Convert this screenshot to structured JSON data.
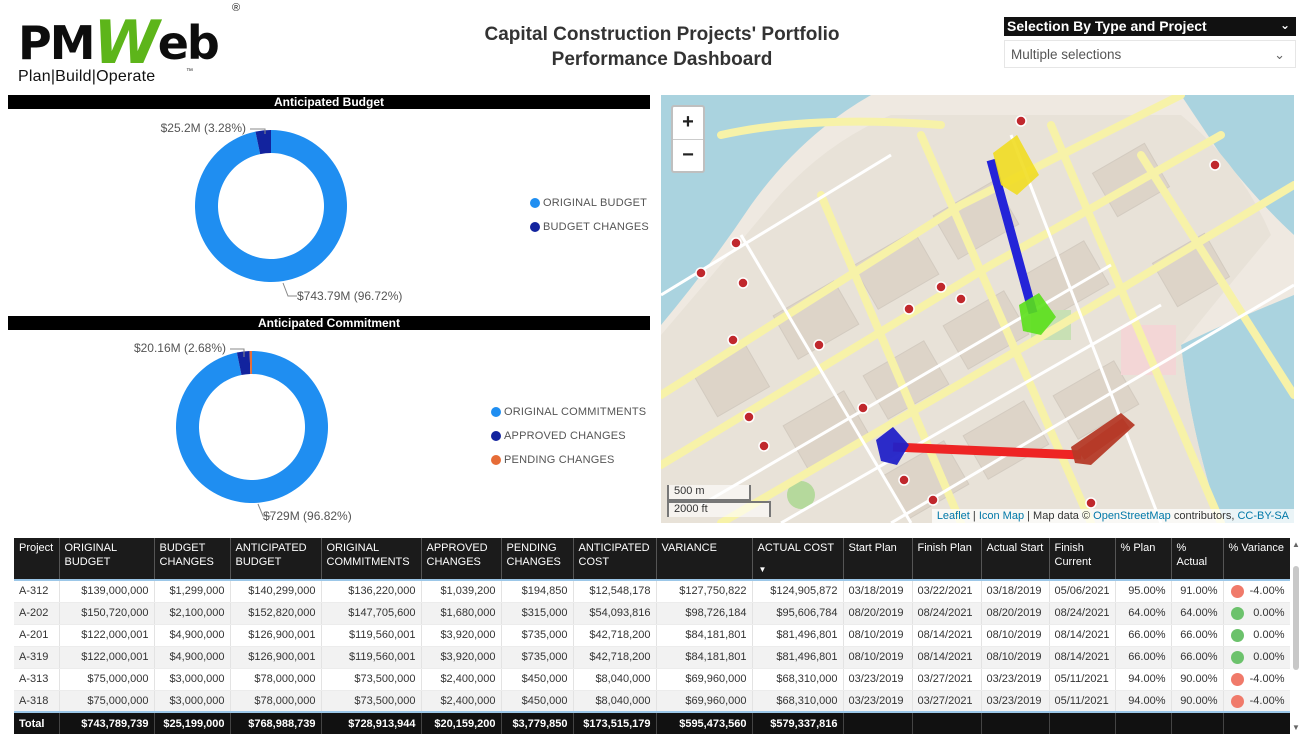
{
  "header": {
    "logo_text_left": "PM",
    "logo_text_w": "W",
    "logo_text_right": "eb",
    "logo_registered": "®",
    "logo_tagline": "Plan|Build|Operate",
    "logo_tm": "™",
    "title_line1": "Capital Construction Projects' Portfolio",
    "title_line2": "Performance Dashboard"
  },
  "slicer": {
    "title": "Selection By Type and Project",
    "value": "Multiple selections"
  },
  "budget_panel": {
    "title": "Anticipated Budget",
    "legend": [
      {
        "label": "ORIGINAL BUDGET",
        "color": "#1f8ef1"
      },
      {
        "label": "BUDGET CHANGES",
        "color": "#12239e"
      }
    ]
  },
  "commit_panel": {
    "title": "Anticipated Commitment",
    "legend": [
      {
        "label": "ORIGINAL COMMITMENTS",
        "color": "#1f8ef1"
      },
      {
        "label": "APPROVED CHANGES",
        "color": "#12239e"
      },
      {
        "label": "PENDING CHANGES",
        "color": "#e66c37"
      }
    ]
  },
  "chart_data": [
    {
      "type": "pie",
      "title": "Anticipated Budget",
      "categories": [
        "ORIGINAL BUDGET",
        "BUDGET CHANGES"
      ],
      "values": [
        743.79,
        25.2
      ],
      "percent": [
        96.72,
        3.28
      ],
      "data_labels": [
        "$743.79M (96.72%)",
        "$25.2M (3.28%)"
      ],
      "colors": [
        "#1f8ef1",
        "#12239e"
      ],
      "legend": "right"
    },
    {
      "type": "pie",
      "title": "Anticipated Commitment",
      "categories": [
        "ORIGINAL COMMITMENTS",
        "APPROVED CHANGES",
        "PENDING CHANGES"
      ],
      "values": [
        729,
        20.16,
        3.78
      ],
      "percent": [
        96.82,
        2.68,
        0.5
      ],
      "data_labels": [
        "$729M (96.82%)",
        "$20.16M (2.68%)",
        ""
      ],
      "colors": [
        "#1f8ef1",
        "#12239e",
        "#e66c37"
      ],
      "legend": "right"
    }
  ],
  "map": {
    "zoom_in": "+",
    "zoom_out": "−",
    "scale_metric": "500 m",
    "scale_imperial": "2000 ft",
    "attribution": {
      "leaflet": "Leaflet",
      "sep1": " | ",
      "icon_map": "Icon Map",
      "mid": " | Map data © ",
      "osm": "OpenStreetMap",
      "contrib": " contributors, ",
      "license": "CC-BY-SA"
    }
  },
  "table": {
    "columns": [
      "Project",
      "ORIGINAL BUDGET",
      "BUDGET CHANGES",
      "ANTICIPATED BUDGET",
      "ORIGINAL COMMITMENTS",
      "APPROVED CHANGES",
      "PENDING CHANGES",
      "ANTICIPATED COST",
      "VARIANCE",
      "ACTUAL COST",
      "Start Plan",
      "Finish Plan",
      "Actual Start",
      "Finish Current",
      "% Plan",
      "% Actual",
      "% Variance"
    ],
    "rows": [
      [
        "A-312",
        "$139,000,000",
        "$1,299,000",
        "$140,299,000",
        "$136,220,000",
        "$1,039,200",
        "$194,850",
        "$12,548,178",
        "$127,750,822",
        "$124,905,872",
        "03/18/2019",
        "03/22/2021",
        "03/18/2019",
        "05/06/2021",
        "95.00%",
        "91.00%",
        "-4.00%"
      ],
      [
        "A-202",
        "$150,720,000",
        "$2,100,000",
        "$152,820,000",
        "$147,705,600",
        "$1,680,000",
        "$315,000",
        "$54,093,816",
        "$98,726,184",
        "$95,606,784",
        "08/20/2019",
        "08/24/2021",
        "08/20/2019",
        "08/24/2021",
        "64.00%",
        "64.00%",
        "0.00%"
      ],
      [
        "A-201",
        "$122,000,001",
        "$4,900,000",
        "$126,900,001",
        "$119,560,001",
        "$3,920,000",
        "$735,000",
        "$42,718,200",
        "$84,181,801",
        "$81,496,801",
        "08/10/2019",
        "08/14/2021",
        "08/10/2019",
        "08/14/2021",
        "66.00%",
        "66.00%",
        "0.00%"
      ],
      [
        "A-319",
        "$122,000,001",
        "$4,900,000",
        "$126,900,001",
        "$119,560,001",
        "$3,920,000",
        "$735,000",
        "$42,718,200",
        "$84,181,801",
        "$81,496,801",
        "08/10/2019",
        "08/14/2021",
        "08/10/2019",
        "08/14/2021",
        "66.00%",
        "66.00%",
        "0.00%"
      ],
      [
        "A-313",
        "$75,000,000",
        "$3,000,000",
        "$78,000,000",
        "$73,500,000",
        "$2,400,000",
        "$450,000",
        "$8,040,000",
        "$69,960,000",
        "$68,310,000",
        "03/23/2019",
        "03/27/2021",
        "03/23/2019",
        "05/11/2021",
        "94.00%",
        "90.00%",
        "-4.00%"
      ],
      [
        "A-318",
        "$75,000,000",
        "$3,000,000",
        "$78,000,000",
        "$73,500,000",
        "$2,400,000",
        "$450,000",
        "$8,040,000",
        "$69,960,000",
        "$68,310,000",
        "03/23/2019",
        "03/27/2021",
        "03/23/2019",
        "05/11/2021",
        "94.00%",
        "90.00%",
        "-4.00%"
      ]
    ],
    "variance_flags": [
      "red",
      "green",
      "green",
      "green",
      "red",
      "red"
    ],
    "flag_colors": {
      "red": "#f07a6a",
      "green": "#6cc26c"
    },
    "total": [
      "Total",
      "$743,789,739",
      "$25,199,000",
      "$768,988,739",
      "$728,913,944",
      "$20,159,200",
      "$3,779,850",
      "$173,515,179",
      "$595,473,560",
      "$579,337,816",
      "",
      "",
      "",
      "",
      "",
      "",
      ""
    ]
  }
}
